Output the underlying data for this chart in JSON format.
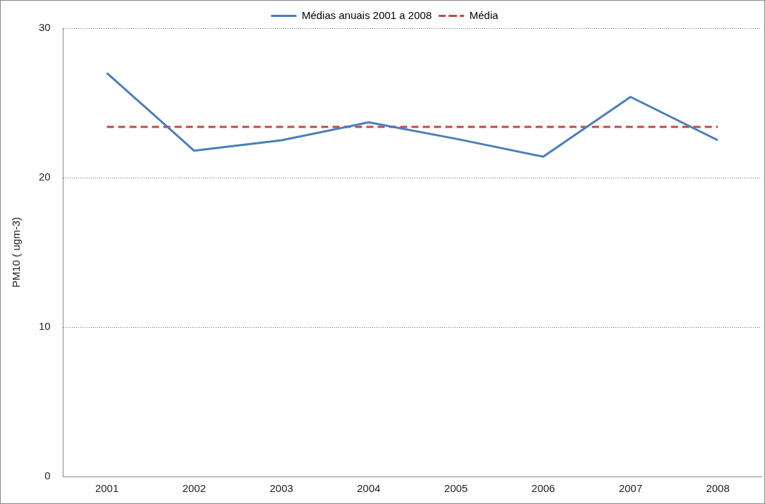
{
  "chart_data": {
    "type": "line",
    "ylabel": "PM10 ( ugm-3)",
    "categories": [
      "2001",
      "2002",
      "2003",
      "2004",
      "2005",
      "2006",
      "2007",
      "2008"
    ],
    "series": [
      {
        "name": "Médias anuais 2001 a 2008",
        "color": "#4a7ebb",
        "values": [
          27.0,
          21.8,
          22.5,
          23.7,
          22.6,
          21.4,
          25.4,
          22.5
        ],
        "line_style": "solid"
      },
      {
        "name": "Média",
        "color": "#be4b48",
        "values": [
          23.4,
          23.4,
          23.4,
          23.4,
          23.4,
          23.4,
          23.4,
          23.4
        ],
        "line_style": "dashed"
      }
    ],
    "ylim": [
      0,
      30
    ],
    "yticks": [
      0,
      10,
      20,
      30
    ],
    "grid": "y",
    "legend": "top",
    "marker": "none"
  }
}
